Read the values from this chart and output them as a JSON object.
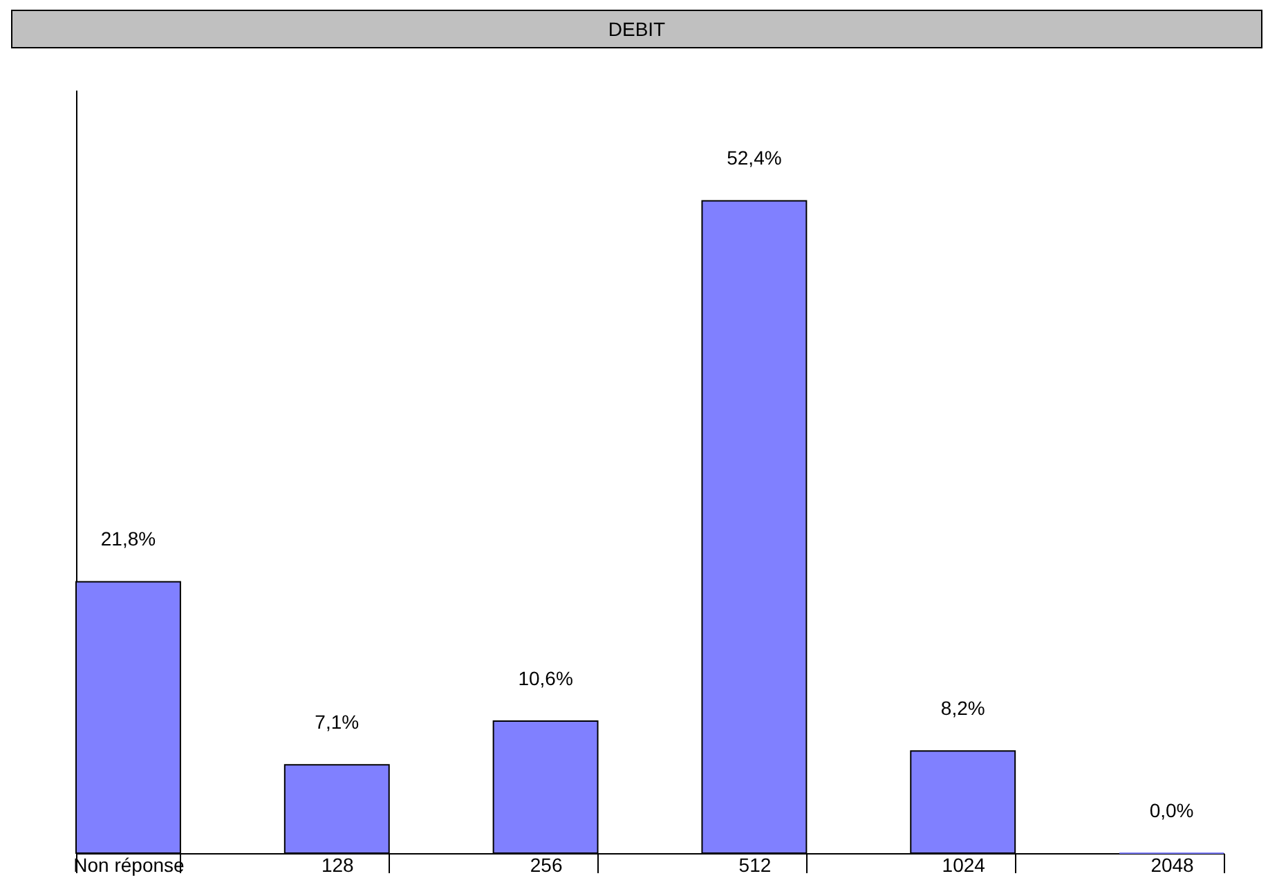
{
  "chart_data": {
    "type": "bar",
    "title": "DEBIT",
    "categories": [
      "Non réponse",
      "128",
      "256",
      "512",
      "1024",
      "2048"
    ],
    "values": [
      21.8,
      7.1,
      10.6,
      52.4,
      8.2,
      0.0
    ],
    "value_labels": [
      "21,8%",
      "7,1%",
      "10,6%",
      "52,4%",
      "8,2%",
      "0,0%"
    ],
    "color": "#8080ff",
    "grid": false
  }
}
